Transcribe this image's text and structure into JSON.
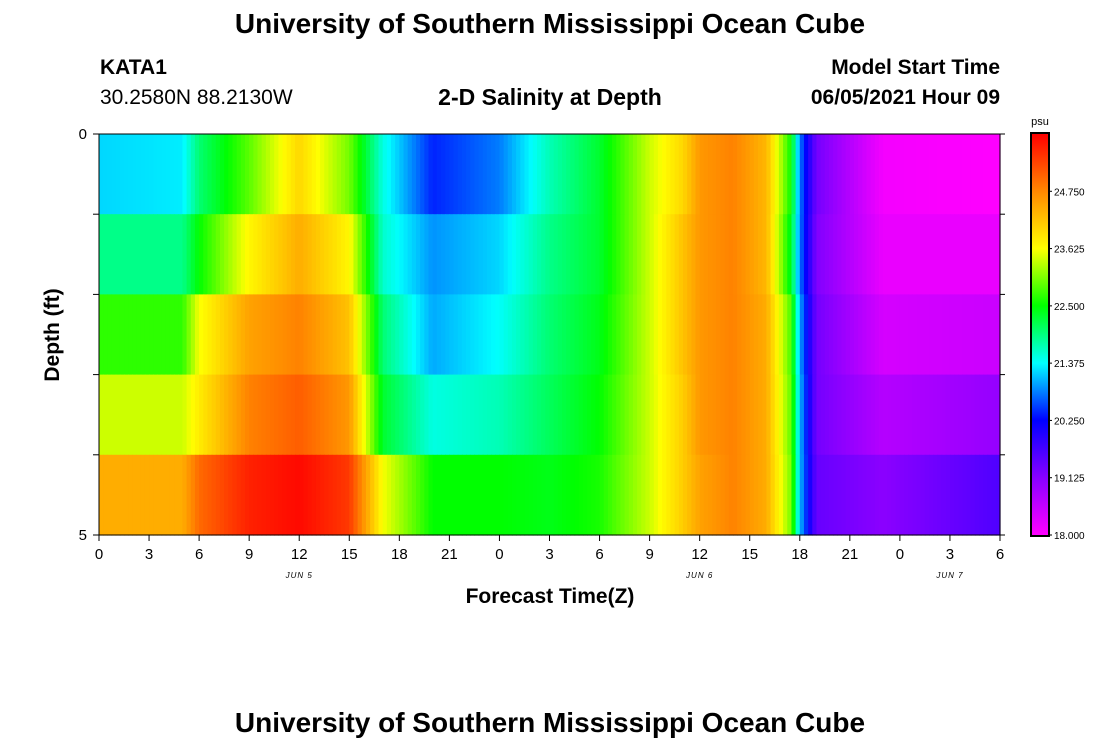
{
  "page": {
    "top_title": "University of Southern Mississippi Ocean Cube",
    "bottom_title": "University of Southern Mississippi Ocean Cube",
    "station_id": "KATA1",
    "station_coords": "30.2580N  88.2130W",
    "plot_title": "2-D Salinity at Depth",
    "model_start_label": "Model Start Time",
    "model_start_value": "06/05/2021 Hour 09"
  },
  "chart_data": {
    "type": "heatmap",
    "title": "2-D Salinity at Depth",
    "xlabel": "Forecast Time(Z)",
    "ylabel": "Depth (ft)",
    "x_tick_labels": [
      "0",
      "3",
      "6",
      "9",
      "12",
      "15",
      "18",
      "21",
      "0",
      "3",
      "6",
      "9",
      "12",
      "15",
      "18",
      "21",
      "0",
      "3",
      "6"
    ],
    "x_range_hours": [
      0,
      54
    ],
    "date_labels": [
      {
        "text": "JUN 5",
        "hour": 12
      },
      {
        "text": "JUN 6",
        "hour": 36
      },
      {
        "text": "JUN 7",
        "hour": 51
      }
    ],
    "y_tick_labels": [
      {
        "value": 0,
        "text": "0"
      },
      {
        "value": 1,
        "text": ""
      },
      {
        "value": 2,
        "text": ""
      },
      {
        "value": 3,
        "text": ""
      },
      {
        "value": 4,
        "text": ""
      },
      {
        "value": 5,
        "text": "5"
      }
    ],
    "ylim": [
      0,
      5
    ],
    "depth_layers": 5,
    "colorbar": {
      "unit": "psu",
      "min": 18.0,
      "max": 25.875,
      "tick_labels": [
        "18.000",
        "19.125",
        "20.250",
        "21.375",
        "22.500",
        "23.625",
        "24.750"
      ],
      "tick_values": [
        18.0,
        19.125,
        20.25,
        21.375,
        22.5,
        23.625,
        24.75
      ],
      "stops": [
        {
          "v": 18.0,
          "color": "#ff00ff"
        },
        {
          "v": 19.125,
          "color": "#8800ff"
        },
        {
          "v": 20.25,
          "color": "#0000ff"
        },
        {
          "v": 21.375,
          "color": "#00ffff"
        },
        {
          "v": 22.5,
          "color": "#00ff00"
        },
        {
          "v": 23.625,
          "color": "#ffff00"
        },
        {
          "v": 24.75,
          "color": "#ff8800"
        },
        {
          "v": 25.875,
          "color": "#ff0000"
        }
      ]
    },
    "series": [
      {
        "name": "Depth layer 1 (0-1 ft)",
        "hours": [
          0,
          5,
          6,
          9,
          12,
          15,
          17,
          20,
          24,
          27,
          30,
          33,
          35,
          36,
          38,
          40,
          41.5,
          42,
          43,
          47,
          54
        ],
        "values": [
          21.2,
          21.3,
          22.0,
          22.9,
          24.0,
          23.0,
          21.5,
          20.4,
          20.8,
          21.7,
          22.3,
          23.4,
          24.0,
          24.6,
          24.8,
          24.3,
          22.5,
          20.8,
          19.3,
          18.1,
          18.0
        ]
      },
      {
        "name": "Depth layer 2 (1-2 ft)",
        "hours": [
          0,
          5,
          6,
          9,
          12,
          15,
          17,
          20,
          24,
          27,
          30,
          33,
          35,
          36,
          38,
          40,
          41.5,
          42,
          43,
          47,
          54
        ],
        "values": [
          21.9,
          21.9,
          22.5,
          23.7,
          24.4,
          23.7,
          21.6,
          20.9,
          21.2,
          21.9,
          22.3,
          23.4,
          24.2,
          24.6,
          24.8,
          24.3,
          22.3,
          20.8,
          19.2,
          18.2,
          18.2
        ]
      },
      {
        "name": "Depth layer 3 (2-3 ft)",
        "hours": [
          0,
          5,
          6,
          9,
          12,
          15,
          17,
          20,
          24,
          27,
          30,
          33,
          35,
          36,
          38,
          40,
          41.5,
          42,
          43,
          47,
          54
        ],
        "values": [
          22.7,
          22.7,
          23.6,
          24.5,
          24.8,
          24.2,
          22.0,
          21.0,
          21.4,
          22.0,
          22.4,
          23.4,
          24.2,
          24.6,
          24.8,
          24.4,
          22.8,
          21.0,
          19.3,
          18.4,
          18.5
        ]
      },
      {
        "name": "Depth layer 4 (3-4 ft)",
        "hours": [
          0,
          5,
          6,
          9,
          12,
          15,
          17,
          20,
          24,
          27,
          30,
          33,
          35,
          36,
          38,
          40,
          41.5,
          42,
          43,
          47,
          54
        ],
        "values": [
          23.4,
          23.4,
          23.8,
          24.8,
          25.1,
          24.6,
          22.3,
          21.5,
          21.7,
          22.1,
          22.5,
          23.4,
          24.1,
          24.6,
          24.8,
          24.4,
          22.9,
          21.1,
          19.3,
          18.7,
          19.0
        ]
      },
      {
        "name": "Depth layer 5 (4-5 ft)",
        "hours": [
          0,
          5,
          6,
          9,
          12,
          15,
          17,
          20,
          24,
          27,
          30,
          33,
          35,
          36,
          38,
          40,
          41.5,
          42,
          43,
          47,
          54
        ],
        "values": [
          24.4,
          24.4,
          25.0,
          25.6,
          25.8,
          25.4,
          23.6,
          22.5,
          22.5,
          22.4,
          22.6,
          23.4,
          24.1,
          24.5,
          24.8,
          24.4,
          23.0,
          21.1,
          19.4,
          19.1,
          19.6
        ]
      }
    ]
  }
}
